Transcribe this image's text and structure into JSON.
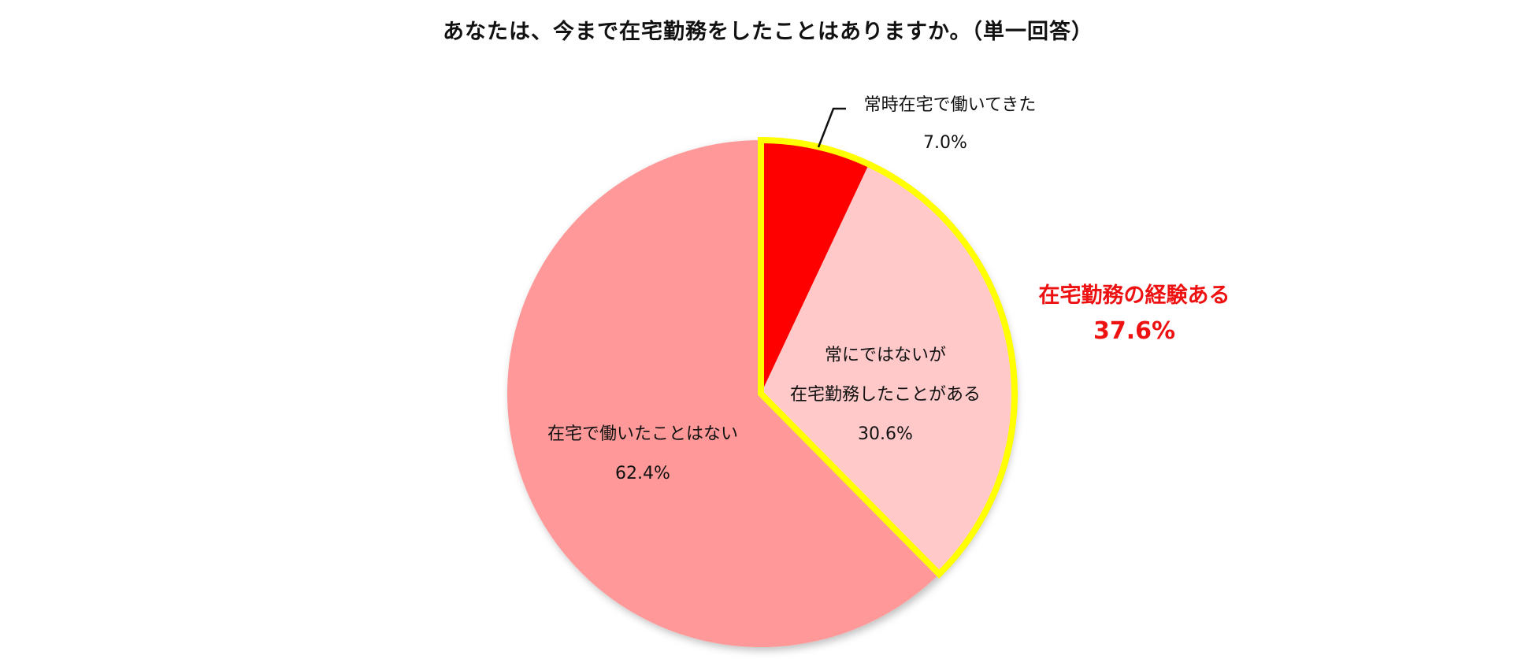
{
  "chart_data": {
    "type": "pie",
    "title": "あなたは、今まで在宅勤務をしたことはありますか。（単一回答）",
    "slices": [
      {
        "label_lines": [
          "常時在宅で働いてきた"
        ],
        "value": 7.0,
        "value_label": "7.0%",
        "color": "#ff0000"
      },
      {
        "label_lines": [
          "常にではないが",
          "在宅勤務したことがある"
        ],
        "value": 30.6,
        "value_label": "30.6%",
        "color": "#ffc9c9"
      },
      {
        "label_lines": [
          "在宅で働いたことはない"
        ],
        "value": 62.4,
        "value_label": "62.4%",
        "color": "#ff9999"
      }
    ],
    "highlight": {
      "label": "在宅勤務の経験ある",
      "value": 37.6,
      "value_label": "37.6%",
      "color": "#ee1111",
      "outline_color": "#ffff00"
    }
  }
}
